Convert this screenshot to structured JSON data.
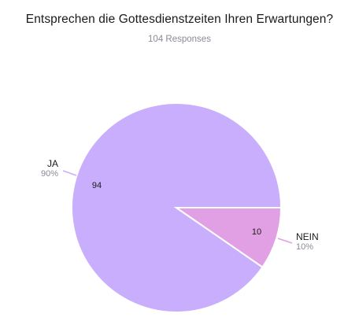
{
  "chart_data": {
    "type": "pie",
    "title": "Entsprechen die Gottesdienstzeiten Ihren Erwartungen?",
    "subtitle": "104 Responses",
    "slices": [
      {
        "label": "JA",
        "value": 94,
        "percent_label": "90%",
        "color": "#c8aefc",
        "leader_color": "#c8aefc"
      },
      {
        "label": "NEIN",
        "value": 10,
        "percent_label": "10%",
        "color": "#e1a0e3",
        "leader_color": "#e1a0e3"
      }
    ]
  }
}
